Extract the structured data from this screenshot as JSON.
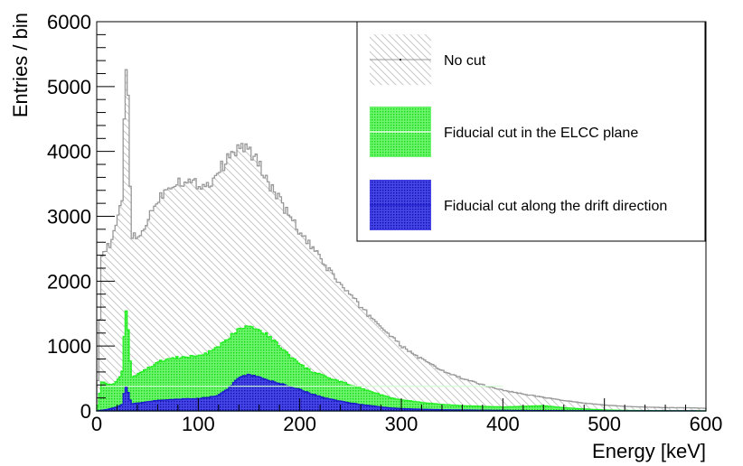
{
  "chart_data": {
    "type": "histogram",
    "xlabel": "Energy [keV]",
    "ylabel": "Entries / bin",
    "xlim": [
      0,
      600
    ],
    "ylim": [
      0,
      6000
    ],
    "x_ticks": [
      0,
      100,
      200,
      300,
      400,
      500,
      600
    ],
    "y_ticks": [
      0,
      1000,
      2000,
      3000,
      4000,
      5000,
      6000
    ],
    "grid": false,
    "legend_position": "top-right",
    "legend": [
      {
        "label": "No cut",
        "color": "#999999",
        "fill": "hatched-grey"
      },
      {
        "label": "Fiducial cut in the ELCC plane",
        "color": "#22ee22",
        "fill": "dotted-green"
      },
      {
        "label": "Fiducial cut along the drift direction",
        "color": "#1a1acc",
        "fill": "dotted-blue"
      }
    ],
    "series": [
      {
        "name": "No cut",
        "color": "#999999",
        "x": [
          0,
          5,
          10,
          15,
          20,
          25,
          28,
          30,
          32,
          35,
          40,
          45,
          50,
          60,
          70,
          80,
          90,
          100,
          110,
          120,
          130,
          140,
          145,
          150,
          155,
          160,
          170,
          180,
          190,
          200,
          210,
          220,
          230,
          240,
          250,
          260,
          270,
          280,
          290,
          300,
          320,
          340,
          360,
          380,
          400,
          420,
          440,
          460,
          480,
          500,
          520,
          540,
          560,
          580,
          600
        ],
        "values": [
          0,
          2400,
          2500,
          2600,
          2900,
          3300,
          5100,
          5600,
          3900,
          2700,
          2650,
          2750,
          2950,
          3250,
          3450,
          3550,
          3520,
          3500,
          3480,
          3700,
          3900,
          4050,
          4080,
          4000,
          3920,
          3800,
          3500,
          3250,
          3000,
          2750,
          2550,
          2350,
          2150,
          1950,
          1780,
          1600,
          1450,
          1300,
          1150,
          1000,
          800,
          620,
          500,
          400,
          320,
          260,
          210,
          160,
          120,
          90,
          70,
          60,
          50,
          50,
          40
        ]
      },
      {
        "name": "Fiducial cut in the ELCC plane",
        "color": "#22ee22",
        "x": [
          0,
          5,
          10,
          15,
          20,
          25,
          28,
          30,
          32,
          35,
          40,
          50,
          60,
          70,
          80,
          90,
          100,
          110,
          120,
          130,
          140,
          150,
          160,
          170,
          180,
          190,
          200,
          210,
          220,
          230,
          240,
          250,
          260,
          270,
          280,
          290,
          300,
          320,
          340,
          360,
          380,
          400,
          420,
          440,
          460,
          480,
          500,
          520,
          540,
          560,
          580,
          600
        ],
        "values": [
          0,
          450,
          420,
          400,
          450,
          600,
          1400,
          1620,
          900,
          520,
          560,
          650,
          750,
          800,
          820,
          830,
          850,
          900,
          980,
          1120,
          1280,
          1320,
          1250,
          1150,
          1000,
          850,
          720,
          620,
          560,
          500,
          450,
          400,
          350,
          300,
          250,
          200,
          170,
          130,
          100,
          80,
          70,
          60,
          70,
          80,
          50,
          30,
          15,
          8,
          5,
          4,
          3,
          2
        ]
      },
      {
        "name": "Fiducial cut along the drift direction",
        "color": "#1a1acc",
        "x": [
          0,
          5,
          10,
          15,
          20,
          25,
          28,
          30,
          32,
          35,
          40,
          50,
          60,
          70,
          80,
          90,
          100,
          110,
          120,
          130,
          140,
          150,
          160,
          170,
          180,
          190,
          200,
          210,
          220,
          230,
          240,
          250,
          260,
          270,
          280,
          290,
          300,
          320,
          340,
          360,
          380,
          400,
          420,
          440,
          460,
          480,
          500,
          520,
          540,
          560,
          580,
          600
        ],
        "values": [
          0,
          10,
          20,
          40,
          60,
          100,
          350,
          380,
          200,
          110,
          120,
          140,
          160,
          170,
          180,
          185,
          190,
          210,
          240,
          350,
          520,
          560,
          520,
          470,
          420,
          380,
          330,
          270,
          220,
          180,
          150,
          120,
          100,
          80,
          60,
          45,
          35,
          25,
          18,
          14,
          10,
          8,
          6,
          5,
          4,
          3,
          2,
          2,
          1,
          1,
          1,
          0
        ]
      }
    ]
  }
}
